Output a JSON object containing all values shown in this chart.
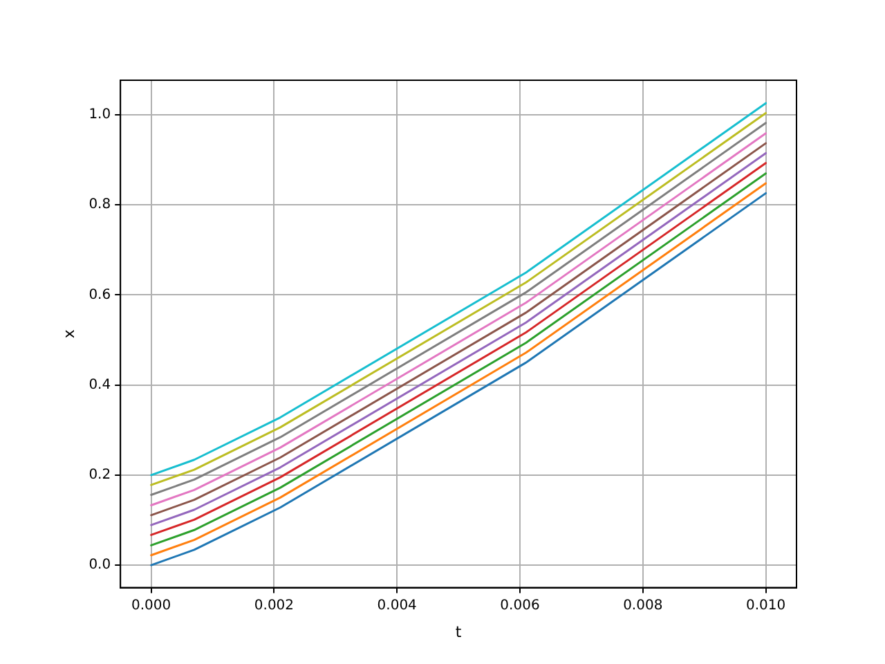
{
  "chart_data": {
    "type": "line",
    "xlabel": "t",
    "ylabel": "x",
    "x": [
      0,
      0.0007,
      0.0021,
      0.0061,
      0.01
    ],
    "series": [
      {
        "color": "#1f77b4",
        "values": [
          0,
          0.034,
          0.128,
          0.45,
          0.826
        ]
      },
      {
        "color": "#ff7f0e",
        "values": [
          0.022,
          0.056,
          0.15,
          0.472,
          0.848
        ]
      },
      {
        "color": "#2ca02c",
        "values": [
          0.044,
          0.078,
          0.172,
          0.494,
          0.87
        ]
      },
      {
        "color": "#d62728",
        "values": [
          0.067,
          0.101,
          0.195,
          0.517,
          0.893
        ]
      },
      {
        "color": "#9467bd",
        "values": [
          0.089,
          0.123,
          0.217,
          0.539,
          0.915
        ]
      },
      {
        "color": "#8c564b",
        "values": [
          0.111,
          0.145,
          0.239,
          0.561,
          0.937
        ]
      },
      {
        "color": "#e377c2",
        "values": [
          0.133,
          0.167,
          0.261,
          0.583,
          0.959
        ]
      },
      {
        "color": "#7f7f7f",
        "values": [
          0.156,
          0.19,
          0.284,
          0.606,
          0.982
        ]
      },
      {
        "color": "#bcbd22",
        "values": [
          0.178,
          0.212,
          0.306,
          0.628,
          1.004
        ]
      },
      {
        "color": "#17becf",
        "values": [
          0.2,
          0.234,
          0.328,
          0.65,
          1.026
        ]
      }
    ],
    "xlim": [
      -0.0005,
      0.0105
    ],
    "xticks": [
      {
        "value": 0,
        "label": "0.000"
      },
      {
        "value": 0.002,
        "label": "0.002"
      },
      {
        "value": 0.004,
        "label": "0.004"
      },
      {
        "value": 0.006,
        "label": "0.006"
      },
      {
        "value": 0.008,
        "label": "0.008"
      },
      {
        "value": 0.01,
        "label": "0.010"
      }
    ],
    "ylim": [
      -0.05,
      1.077
    ],
    "yticks": [
      {
        "value": 0,
        "label": "0.0"
      },
      {
        "value": 0.2,
        "label": "0.2"
      },
      {
        "value": 0.4,
        "label": "0.4"
      },
      {
        "value": 0.6,
        "label": "0.6"
      },
      {
        "value": 0.8,
        "label": "0.8"
      },
      {
        "value": 1,
        "label": "1.0"
      }
    ],
    "grid": true
  }
}
